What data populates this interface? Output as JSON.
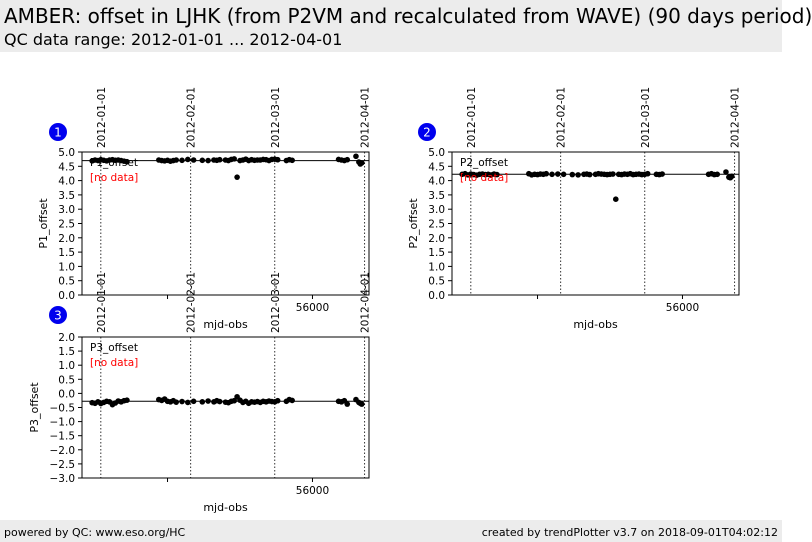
{
  "header": {
    "title": "AMBER: offset in LJHK (from P2VM and recalculated from WAVE) (90 days period)",
    "subtitle": "QC data range: 2012-01-01 ... 2012-04-01"
  },
  "footer": {
    "left": "powered by QC: www.eso.org/HC",
    "right": "created by trendPlotter v3.7 on 2018-09-01T04:02:12"
  },
  "colors": {
    "badge": "#0000ee",
    "nodata": "#ff0000",
    "points": "#000000"
  },
  "chart_data": [
    {
      "type": "scatter",
      "badge": "1",
      "legend": "P1_offset",
      "no_data_label": "[no data]",
      "xlabel": "mjd-obs",
      "ylabel": "P1_offset",
      "xlim": [
        55920.5,
        56019.5
      ],
      "ylim": [
        0.0,
        5.0
      ],
      "yticks": [
        "0.0",
        "0.5",
        "1.0",
        "1.5",
        "2.0",
        "2.5",
        "3.0",
        "3.5",
        "4.0",
        "4.5",
        "5.0"
      ],
      "xticks": [
        {
          "value": 55950,
          "label": ""
        },
        {
          "value": 56000,
          "label": "56000"
        }
      ],
      "date_lines": [
        {
          "value": 55927,
          "label": "2012-01-01"
        },
        {
          "value": 55958,
          "label": "2012-02-01"
        },
        {
          "value": 55987,
          "label": "2012-03-01"
        },
        {
          "value": 56018,
          "label": "2012-04-01"
        }
      ],
      "reference_line": 4.7,
      "x": [
        55924,
        55925,
        55926,
        55927,
        55928,
        55929,
        55930,
        55931,
        55932,
        55933,
        55934,
        55935,
        55936,
        55947,
        55948,
        55949,
        55950,
        55951,
        55952,
        55953,
        55955,
        55957,
        55959,
        55962,
        55964,
        55966,
        55967,
        55968,
        55970,
        55971,
        55972,
        55973,
        55974,
        55975,
        55976,
        55977,
        55978,
        55979,
        55980,
        55981,
        55982,
        55983,
        55984,
        55985,
        55986,
        55987,
        55988,
        55991,
        55992,
        55993,
        56009,
        56010,
        56011,
        56012,
        56015,
        56016,
        56016.5,
        56017
      ],
      "y": [
        4.69,
        4.72,
        4.7,
        4.73,
        4.71,
        4.69,
        4.72,
        4.73,
        4.71,
        4.72,
        4.7,
        4.68,
        4.66,
        4.72,
        4.7,
        4.69,
        4.71,
        4.68,
        4.7,
        4.72,
        4.71,
        4.74,
        4.72,
        4.71,
        4.7,
        4.72,
        4.71,
        4.73,
        4.72,
        4.7,
        4.74,
        4.76,
        4.12,
        4.7,
        4.72,
        4.75,
        4.7,
        4.73,
        4.71,
        4.72,
        4.72,
        4.74,
        4.73,
        4.7,
        4.74,
        4.75,
        4.73,
        4.7,
        4.73,
        4.71,
        4.74,
        4.72,
        4.7,
        4.73,
        4.85,
        4.65,
        4.58,
        4.62
      ]
    },
    {
      "type": "scatter",
      "badge": "2",
      "legend": "P2_offset",
      "no_data_label": "[no data]",
      "xlabel": "mjd-obs",
      "ylabel": "P2_offset",
      "xlim": [
        55920.5,
        56019.5
      ],
      "ylim": [
        0.0,
        5.0
      ],
      "yticks": [
        "0.0",
        "0.5",
        "1.0",
        "1.5",
        "2.0",
        "2.5",
        "3.0",
        "3.5",
        "4.0",
        "4.5",
        "5.0"
      ],
      "xticks": [
        {
          "value": 55950,
          "label": ""
        },
        {
          "value": 56000,
          "label": "56000"
        }
      ],
      "date_lines": [
        {
          "value": 55927,
          "label": "2012-01-01"
        },
        {
          "value": 55958,
          "label": "2012-02-01"
        },
        {
          "value": 55987,
          "label": "2012-03-01"
        },
        {
          "value": 56018,
          "label": "2012-04-01"
        }
      ],
      "reference_line": 4.22,
      "x": [
        55924,
        55925,
        55926,
        55927,
        55928,
        55929,
        55930,
        55931,
        55932,
        55933,
        55934,
        55935,
        55936,
        55947,
        55948,
        55949,
        55950,
        55951,
        55952,
        55953,
        55955,
        55957,
        55959,
        55962,
        55964,
        55966,
        55967,
        55968,
        55970,
        55971,
        55972,
        55973,
        55974,
        55975,
        55976,
        55977,
        55978,
        55979,
        55980,
        55981,
        55982,
        55983,
        55984,
        55985,
        55986,
        55987,
        55988,
        55991,
        55992,
        55993,
        56009,
        56010,
        56011,
        56012,
        56015,
        56016,
        56016.5,
        56017
      ],
      "y": [
        4.22,
        4.24,
        4.2,
        4.23,
        4.21,
        4.19,
        4.22,
        4.23,
        4.21,
        4.22,
        4.2,
        4.23,
        4.21,
        4.24,
        4.2,
        4.22,
        4.21,
        4.23,
        4.22,
        4.24,
        4.22,
        4.23,
        4.22,
        4.21,
        4.2,
        4.22,
        4.23,
        4.21,
        4.22,
        4.24,
        4.23,
        4.22,
        4.21,
        4.22,
        4.23,
        3.35,
        4.22,
        4.21,
        4.23,
        4.22,
        4.24,
        4.21,
        4.22,
        4.23,
        4.21,
        4.22,
        4.24,
        4.22,
        4.21,
        4.23,
        4.22,
        4.24,
        4.21,
        4.22,
        4.3,
        4.12,
        4.1,
        4.15
      ]
    },
    {
      "type": "scatter",
      "badge": "3",
      "legend": "P3_offset",
      "no_data_label": "[no data]",
      "xlabel": "mjd-obs",
      "ylabel": "P3_offset",
      "xlim": [
        55920.5,
        56019.5
      ],
      "ylim": [
        -3.0,
        2.0
      ],
      "yticks": [
        "−3.0",
        "−2.5",
        "−2.0",
        "−1.5",
        "−1.0",
        "−0.5",
        "0.0",
        "0.5",
        "1.0",
        "1.5",
        "2.0"
      ],
      "xticks": [
        {
          "value": 55950,
          "label": ""
        },
        {
          "value": 56000,
          "label": "56000"
        }
      ],
      "date_lines": [
        {
          "value": 55927,
          "label": "2012-01-01"
        },
        {
          "value": 55958,
          "label": "2012-02-01"
        },
        {
          "value": 55987,
          "label": "2012-03-01"
        },
        {
          "value": 56018,
          "label": "2012-04-01"
        }
      ],
      "reference_line": -0.28,
      "x": [
        55924,
        55925,
        55926,
        55927,
        55928,
        55929,
        55930,
        55931,
        55932,
        55933,
        55934,
        55935,
        55936,
        55947,
        55948,
        55949,
        55950,
        55951,
        55952,
        55953,
        55955,
        55957,
        55959,
        55962,
        55964,
        55966,
        55967,
        55968,
        55970,
        55971,
        55972,
        55973,
        55974,
        55975,
        55976,
        55977,
        55978,
        55979,
        55980,
        55981,
        55982,
        55983,
        55984,
        55985,
        55986,
        55987,
        55988,
        55991,
        55992,
        55993,
        56009,
        56010,
        56011,
        56012,
        56015,
        56016,
        56016.5,
        56017
      ],
      "y": [
        -0.33,
        -0.35,
        -0.3,
        -0.36,
        -0.32,
        -0.28,
        -0.3,
        -0.4,
        -0.34,
        -0.27,
        -0.3,
        -0.26,
        -0.24,
        -0.22,
        -0.25,
        -0.2,
        -0.28,
        -0.3,
        -0.26,
        -0.31,
        -0.29,
        -0.32,
        -0.28,
        -0.3,
        -0.27,
        -0.3,
        -0.26,
        -0.29,
        -0.31,
        -0.33,
        -0.28,
        -0.26,
        -0.12,
        -0.24,
        -0.32,
        -0.28,
        -0.35,
        -0.3,
        -0.31,
        -0.29,
        -0.32,
        -0.28,
        -0.3,
        -0.27,
        -0.29,
        -0.3,
        -0.26,
        -0.28,
        -0.22,
        -0.25,
        -0.28,
        -0.3,
        -0.26,
        -0.38,
        -0.22,
        -0.32,
        -0.35,
        -0.38
      ]
    }
  ]
}
